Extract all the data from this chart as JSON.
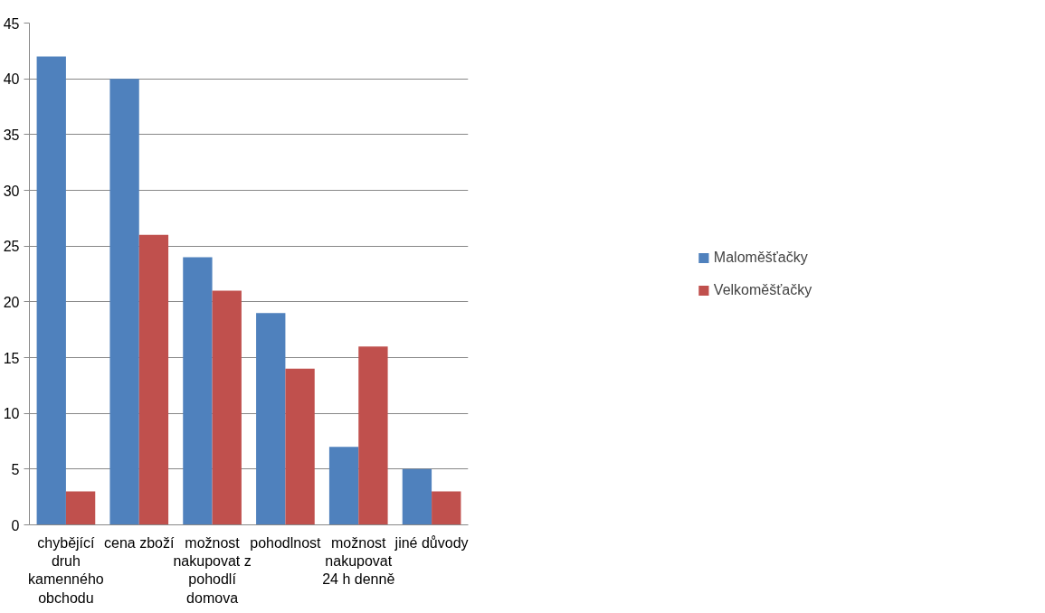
{
  "chart_data": {
    "type": "bar",
    "categories": [
      "chybějící druh kamenného obchodu",
      "cena zboží",
      "možnost nakupovat z pohodlí domova",
      "pohodlnost",
      "možnost nakupovat 24 h denně",
      "jiné důvody"
    ],
    "series": [
      {
        "name": "Maloměšťačky",
        "color": "#4f81bd",
        "values": [
          42,
          40,
          24,
          19,
          7,
          5
        ]
      },
      {
        "name": "Velkoměšťačky",
        "color": "#c0504d",
        "values": [
          3,
          26,
          21,
          14,
          16,
          3
        ]
      }
    ],
    "ylim": [
      0,
      45
    ],
    "yticks": [
      0,
      5,
      10,
      15,
      20,
      25,
      30,
      35,
      40,
      45
    ],
    "grid": "y",
    "legend": "right"
  }
}
